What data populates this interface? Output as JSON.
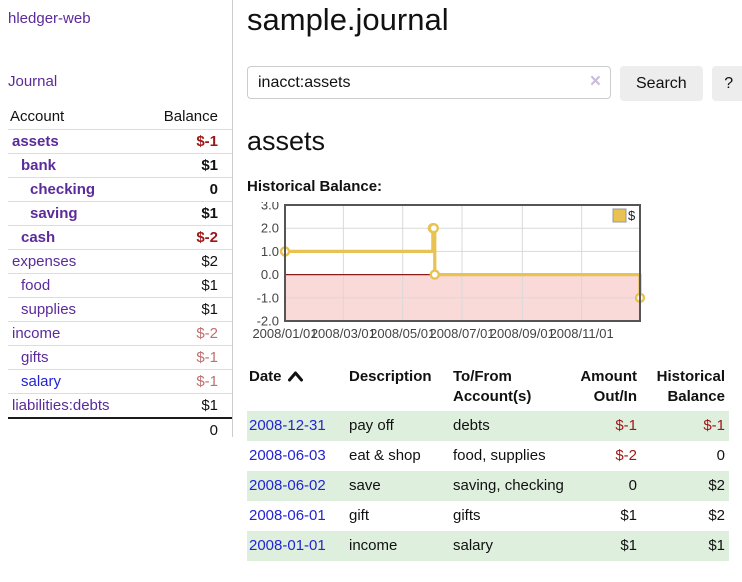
{
  "app": {
    "title": "hledger-web",
    "nav_journal": "Journal"
  },
  "sidebar": {
    "columns": {
      "account": "Account",
      "balance": "Balance"
    },
    "accounts": [
      {
        "name": "assets",
        "indent": 1,
        "balance": "$-1",
        "bold": true,
        "balance_style": "neg",
        "link": "purple"
      },
      {
        "name": "bank",
        "indent": 2,
        "balance": "$1",
        "bold": true,
        "balance_style": "pos",
        "link": "purple"
      },
      {
        "name": "checking",
        "indent": 3,
        "balance": "0",
        "bold": true,
        "balance_style": "pos",
        "link": "purple"
      },
      {
        "name": "saving",
        "indent": 3,
        "balance": "$1",
        "bold": true,
        "balance_style": "pos",
        "link": "purple"
      },
      {
        "name": "cash",
        "indent": 2,
        "balance": "$-2",
        "bold": true,
        "balance_style": "neg",
        "link": "purple"
      },
      {
        "name": "expenses",
        "indent": 1,
        "balance": "$2",
        "bold": false,
        "balance_style": "pos",
        "link": "purple"
      },
      {
        "name": "food",
        "indent": 2,
        "balance": "$1",
        "bold": false,
        "balance_style": "pos",
        "link": "purple"
      },
      {
        "name": "supplies",
        "indent": 2,
        "balance": "$1",
        "bold": false,
        "balance_style": "pos",
        "link": "purple"
      },
      {
        "name": "income",
        "indent": 1,
        "balance": "$-2",
        "bold": false,
        "balance_style": "neg-muted",
        "link": "purple"
      },
      {
        "name": "gifts",
        "indent": 2,
        "balance": "$-1",
        "bold": false,
        "balance_style": "neg-muted",
        "link": "purple"
      },
      {
        "name": "salary",
        "indent": 2,
        "balance": "$-1",
        "bold": false,
        "balance_style": "neg-muted",
        "link": "blue"
      },
      {
        "name": "liabilities:debts",
        "indent": 1,
        "balance": "$1",
        "bold": false,
        "balance_style": "pos",
        "link": "purple"
      }
    ],
    "total": "0"
  },
  "header": {
    "title": "sample.journal"
  },
  "search": {
    "value": "inacct:assets",
    "clear_icon": "×",
    "button_label": "Search",
    "help_label": "?"
  },
  "account_page": {
    "title": "assets",
    "chart_label": "Historical Balance:"
  },
  "chart_data": {
    "type": "line",
    "step": true,
    "title": "Historical Balance",
    "x_start": "2008-01-01",
    "x_end": "2008-12-31",
    "ylim": [
      -2,
      3
    ],
    "yticks": [
      3.0,
      2.0,
      1.0,
      0.0,
      -1.0,
      -2.0
    ],
    "xticks": [
      {
        "date": "2008-01-01",
        "label": "2008/01/01"
      },
      {
        "date": "2008-03-01",
        "label": "2008/03/01"
      },
      {
        "date": "2008-05-01",
        "label": "2008/05/01"
      },
      {
        "date": "2008-07-01",
        "label": "2008/07/01"
      },
      {
        "date": "2008-09-01",
        "label": "2008/09/01"
      },
      {
        "date": "2008-11-01",
        "label": "2008/11/01"
      }
    ],
    "series": [
      {
        "name": "$",
        "color": "#e8c252",
        "points": [
          {
            "date": "2008-01-01",
            "value": 1
          },
          {
            "date": "2008-06-01",
            "value": 2
          },
          {
            "date": "2008-06-02",
            "value": 2
          },
          {
            "date": "2008-06-03",
            "value": 0
          },
          {
            "date": "2008-12-31",
            "value": -1
          }
        ]
      }
    ],
    "legend_position": "top-right",
    "grid": true,
    "negative_region_color": "#fad9d9",
    "zero_line_color": "#8b1a1a",
    "border_color": "#555555"
  },
  "register": {
    "columns": [
      {
        "line1": "Date",
        "line2": "",
        "align": "left",
        "sortable": true
      },
      {
        "line1": "Description",
        "line2": "",
        "align": "left",
        "sortable": false
      },
      {
        "line1": "To/From",
        "line2": "Account(s)",
        "align": "left",
        "sortable": false
      },
      {
        "line1": "Amount",
        "line2": "Out/In",
        "align": "right",
        "sortable": false
      },
      {
        "line1": "Historical",
        "line2": "Balance",
        "align": "right",
        "sortable": false
      }
    ],
    "rows": [
      {
        "date": "2008-12-31",
        "description": "pay off",
        "accounts": "debts",
        "amount": "$-1",
        "balance": "$-1"
      },
      {
        "date": "2008-06-03",
        "description": "eat & shop",
        "accounts": "food, supplies",
        "amount": "$-2",
        "balance": "0"
      },
      {
        "date": "2008-06-02",
        "description": "save",
        "accounts": "saving, checking",
        "amount": "0",
        "balance": "$2"
      },
      {
        "date": "2008-06-01",
        "description": "gift",
        "accounts": "gifts",
        "amount": "$1",
        "balance": "$2"
      },
      {
        "date": "2008-01-01",
        "description": "income",
        "accounts": "salary",
        "amount": "$1",
        "balance": "$1"
      }
    ]
  },
  "colors": {
    "link_purple": "#5b2a9b",
    "link_blue": "#2323d4",
    "negative_strong": "#9d1616",
    "negative_muted": "#c06f6f",
    "row_stripe_green": "#deefde",
    "chart_gold": "#e8c252"
  }
}
